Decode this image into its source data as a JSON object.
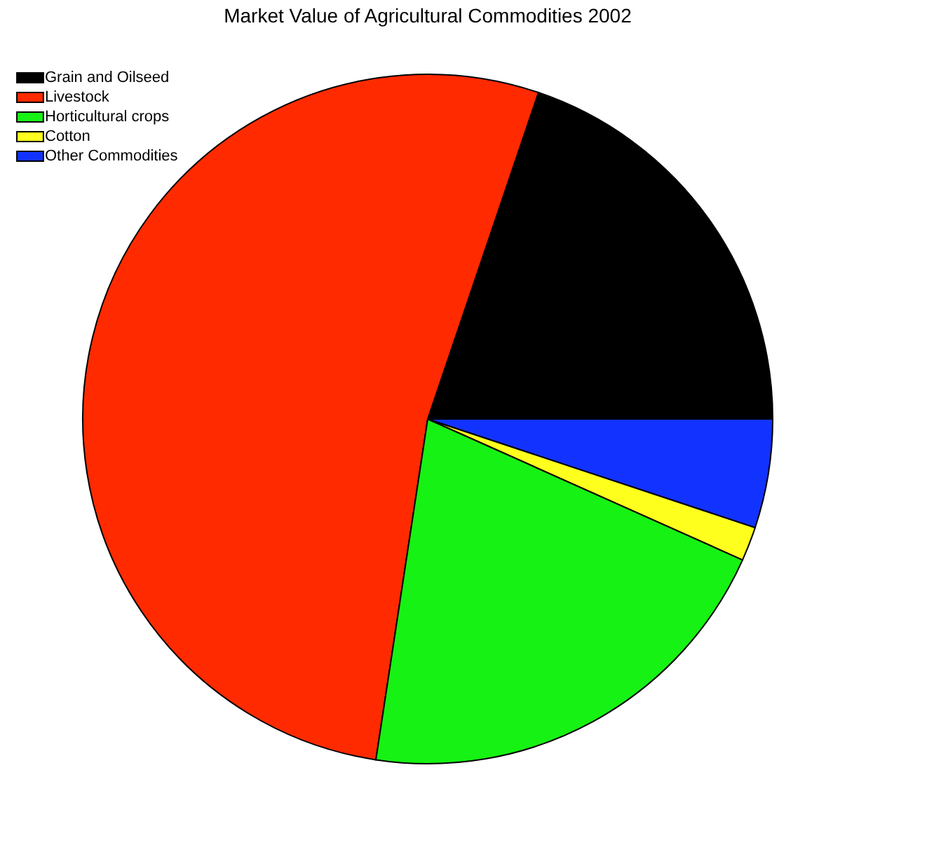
{
  "chart_data": {
    "type": "pie",
    "title": "Market Value of Agricultural Commodities 2002",
    "categories": [
      "Grain and Oilseed",
      "Livestock",
      "Horticultural crops",
      "Cotton",
      "Other Commodities"
    ],
    "values": [
      19.8,
      52.8,
      20.7,
      1.6,
      5.1
    ],
    "colors": [
      "#000000",
      "#ff2a00",
      "#16f213",
      "#ffff1e",
      "#1233ff"
    ],
    "legend": "top left"
  }
}
